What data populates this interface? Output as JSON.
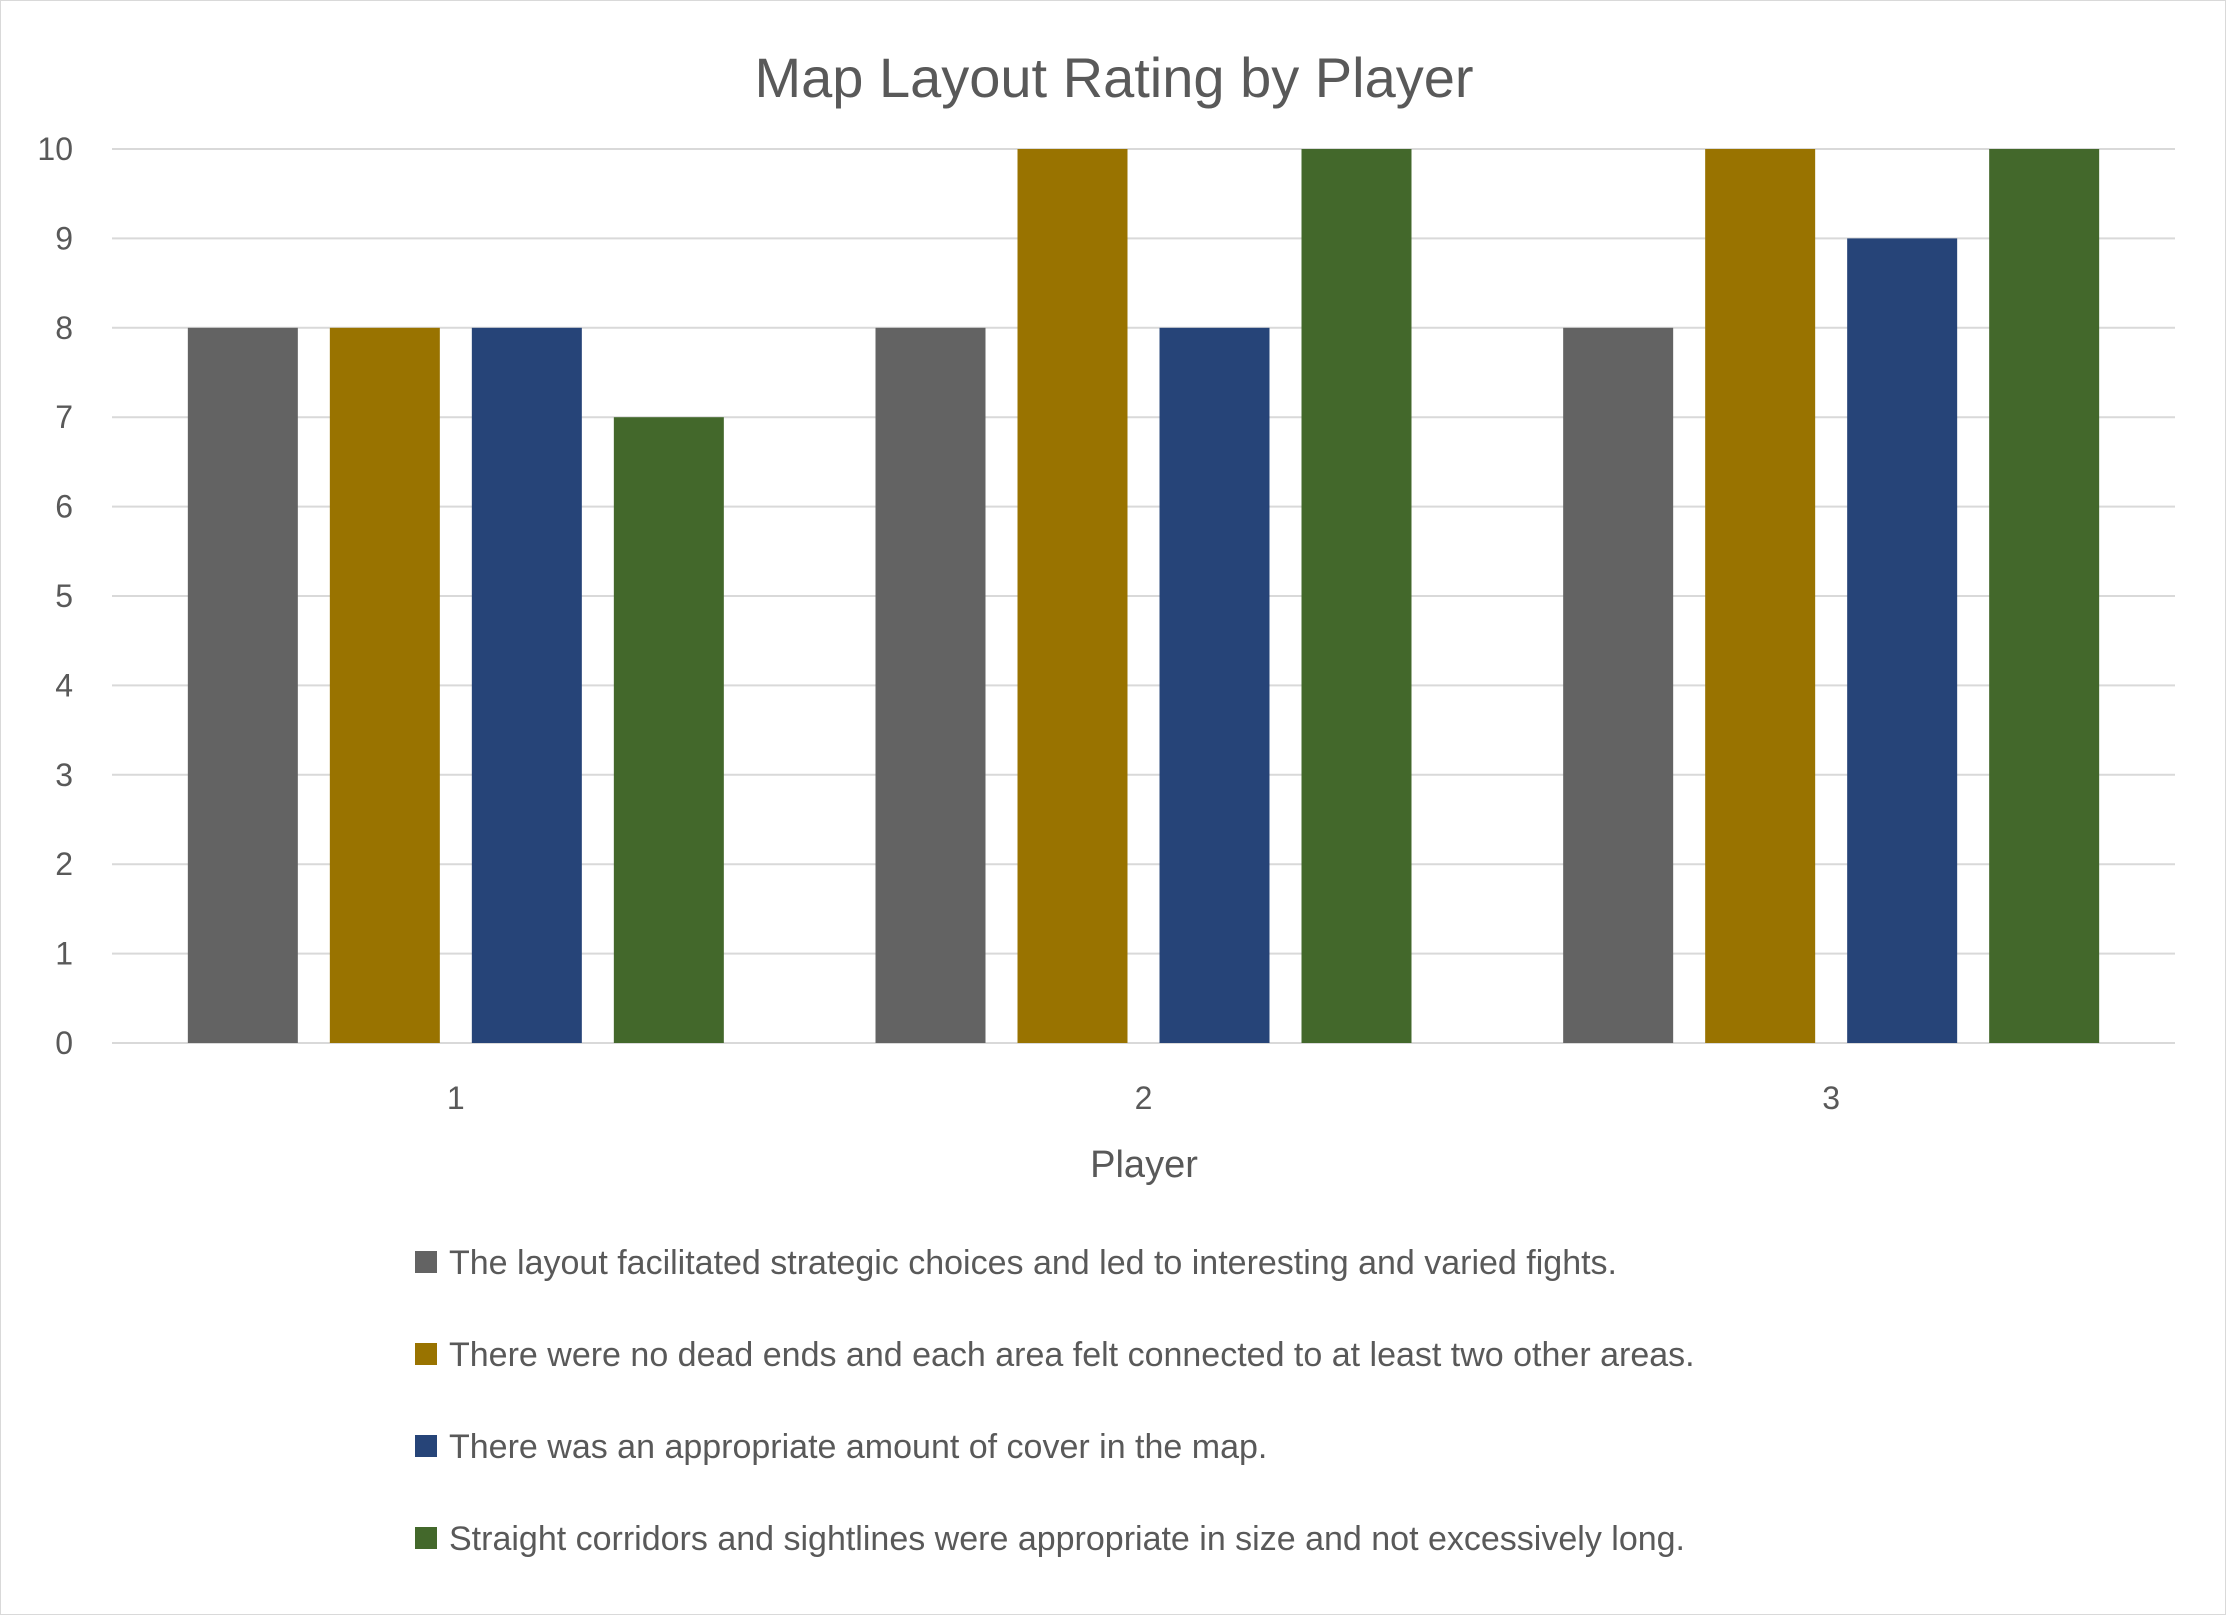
{
  "chart_data": {
    "type": "bar",
    "title": "Map Layout Rating by Player",
    "xlabel": "Player",
    "ylabel": "",
    "categories": [
      "1",
      "2",
      "3"
    ],
    "ylim": [
      0,
      10
    ],
    "yticks": [
      "0",
      "1",
      "2",
      "3",
      "4",
      "5",
      "6",
      "7",
      "8",
      "9",
      "10"
    ],
    "grid": true,
    "legend_position": "bottom",
    "series": [
      {
        "name": "The layout facilitated strategic choices and led to interesting and varied fights.",
        "color": "#636363",
        "values": [
          8,
          8,
          8
        ]
      },
      {
        "name": "There were no dead ends and each area felt connected to at least two other areas.",
        "color": "#997300",
        "values": [
          8,
          10,
          10
        ]
      },
      {
        "name": "There was an appropriate amount of cover in the map.",
        "color": "#264478",
        "values": [
          8,
          8,
          9
        ]
      },
      {
        "name": "Straight corridors and sightlines were appropriate in size and not excessively long.",
        "color": "#43682B",
        "values": [
          7,
          10,
          10
        ]
      }
    ]
  }
}
